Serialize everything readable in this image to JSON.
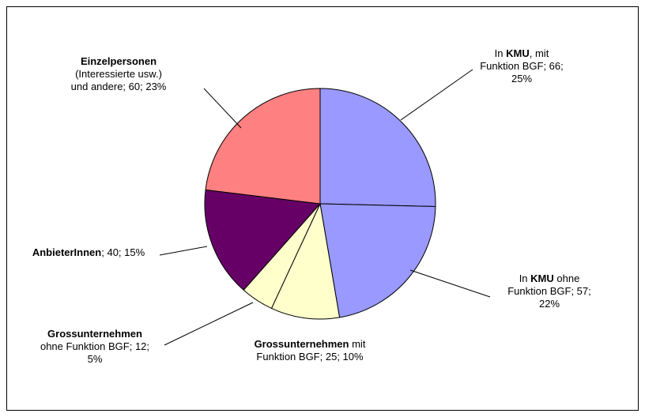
{
  "chart_data": {
    "type": "pie",
    "categories": [
      [
        {
          "text": "In "
        },
        {
          "text": "KMU",
          "bold": true
        },
        {
          "text": ", mit Funktion BGF"
        }
      ],
      [
        {
          "text": "In "
        },
        {
          "text": "KMU",
          "bold": true
        },
        {
          "text": " ohne Funktion BGF"
        }
      ],
      [
        {
          "text": "Grossunternehmen",
          "bold": true
        },
        {
          "text": " mit Funktion BGF"
        }
      ],
      [
        {
          "text": "Grossunternehmen",
          "bold": true
        },
        {
          "text": " ohne Funktion BGF"
        }
      ],
      [
        {
          "text": "AnbieterInnen",
          "bold": true
        }
      ],
      [
        {
          "text": "Einzelpersonen",
          "bold": true
        },
        {
          "text": " (Interessierte usw.) und andere"
        }
      ]
    ],
    "label_separator": "; ",
    "values": [
      66,
      57,
      25,
      12,
      40,
      60
    ],
    "value_labels": [
      "66; 25%",
      "57; 22%",
      "25; 10%",
      "12; 5%",
      "40; 15%",
      "60; 23%"
    ],
    "colors": [
      "#9999ff",
      "#9999ff",
      "#ffffcc",
      "#ffffcc",
      "#660066",
      "#ff8080"
    ]
  }
}
